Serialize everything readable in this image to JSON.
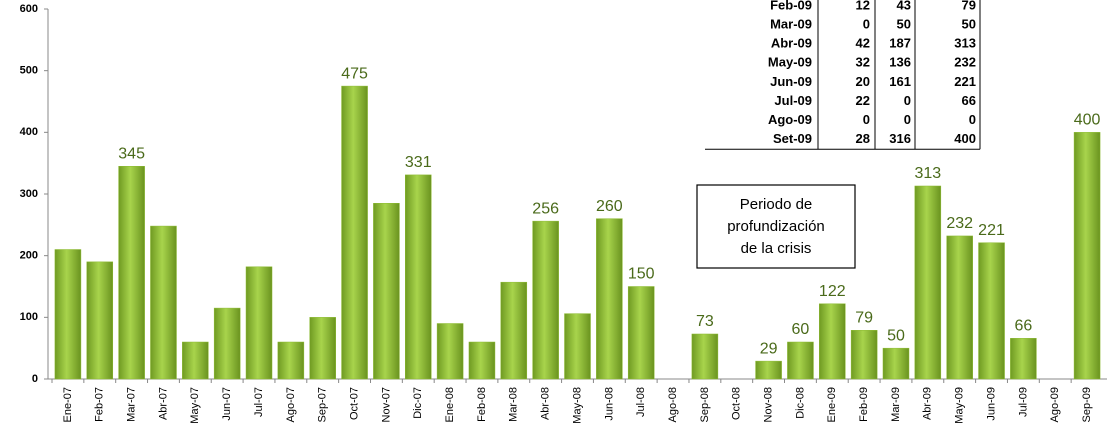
{
  "chart_data": {
    "type": "bar",
    "categories": [
      "Ene-07",
      "Feb-07",
      "Mar-07",
      "Abr-07",
      "May-07",
      "Jun-07",
      "Jul-07",
      "Ago-07",
      "Sep-07",
      "Oct-07",
      "Nov-07",
      "Dic-07",
      "Ene-08",
      "Feb-08",
      "Mar-08",
      "Abr-08",
      "May-08",
      "Jun-08",
      "Jul-08",
      "Ago-08",
      "Sep-08",
      "Oct-08",
      "Nov-08",
      "Dic-08",
      "Ene-09",
      "Feb-09",
      "Mar-09",
      "Abr-09",
      "May-09",
      "Jun-09",
      "Jul-09",
      "Ago-09",
      "Sep-09"
    ],
    "values": [
      210,
      190,
      345,
      248,
      60,
      115,
      182,
      60,
      100,
      475,
      285,
      331,
      90,
      60,
      157,
      256,
      106,
      260,
      150,
      0,
      73,
      0,
      29,
      60,
      122,
      79,
      50,
      313,
      232,
      221,
      66,
      0,
      400
    ],
    "value_labels": [
      null,
      null,
      "345",
      null,
      null,
      null,
      null,
      null,
      null,
      "475",
      null,
      "331",
      null,
      null,
      null,
      "256",
      null,
      "260",
      "150",
      null,
      "73",
      null,
      "29",
      "60",
      "122",
      "79",
      "50",
      "313",
      "232",
      "221",
      "66",
      null,
      "400"
    ],
    "color": "#8dbb32",
    "ylim": [
      0,
      600
    ],
    "yticks": [
      0,
      100,
      200,
      300,
      400,
      500,
      600
    ],
    "annotation": [
      "Periodo de",
      "profundización",
      "de la crisis"
    ],
    "table": {
      "rows": [
        [
          "Feb-09",
          "12",
          "43",
          "79"
        ],
        [
          "Mar-09",
          "0",
          "50",
          "50"
        ],
        [
          "Abr-09",
          "42",
          "187",
          "313"
        ],
        [
          "May-09",
          "32",
          "136",
          "232"
        ],
        [
          "Jun-09",
          "20",
          "161",
          "221"
        ],
        [
          "Jul-09",
          "22",
          "0",
          "66"
        ],
        [
          "Ago-09",
          "0",
          "0",
          "0"
        ],
        [
          "Set-09",
          "28",
          "316",
          "400"
        ]
      ]
    }
  }
}
